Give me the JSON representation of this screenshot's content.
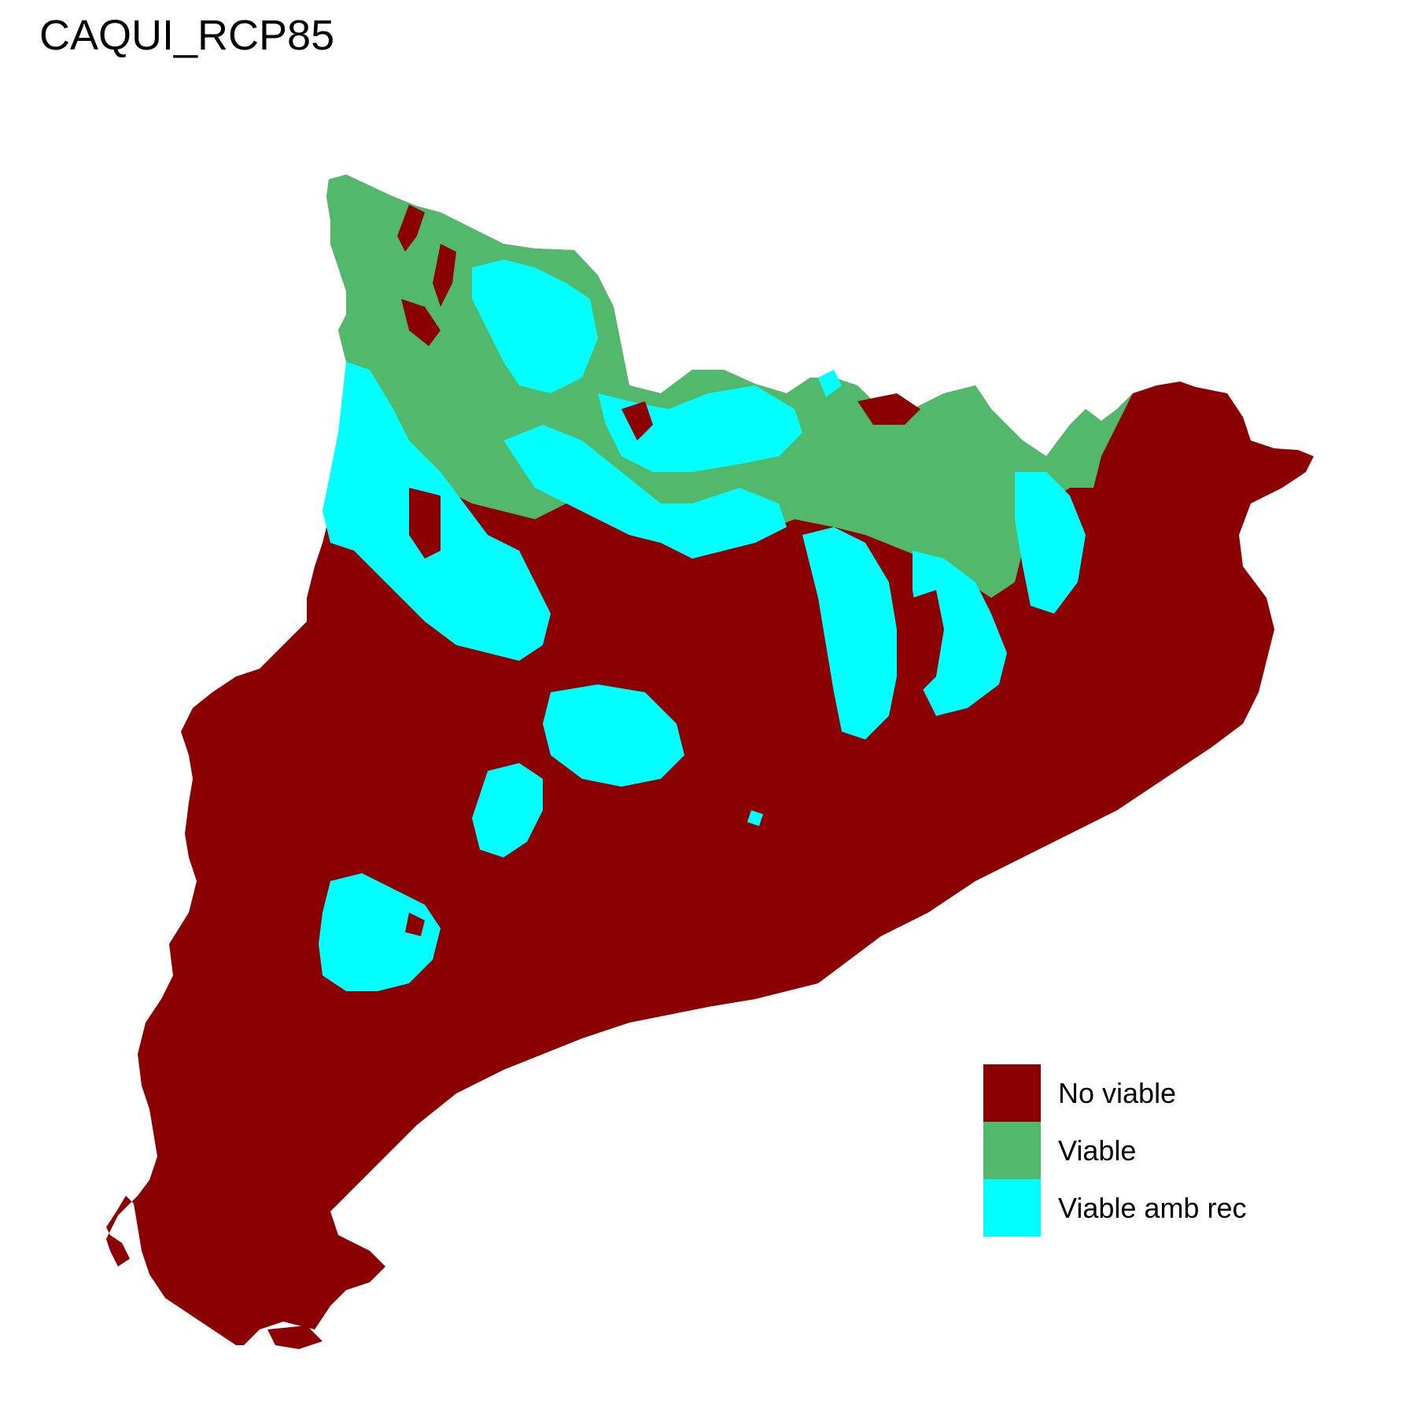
{
  "title": "CAQUI_RCP85",
  "colors": {
    "no_viable": "#8B0000",
    "viable": "#52B96C",
    "viable_amb_rec": "#00FFFF"
  },
  "legend": [
    {
      "label": "No viable",
      "color": "#8B0000"
    },
    {
      "label": "Viable",
      "color": "#52B96C"
    },
    {
      "label": "Viable amb rec",
      "color": "#00FFFF"
    }
  ]
}
